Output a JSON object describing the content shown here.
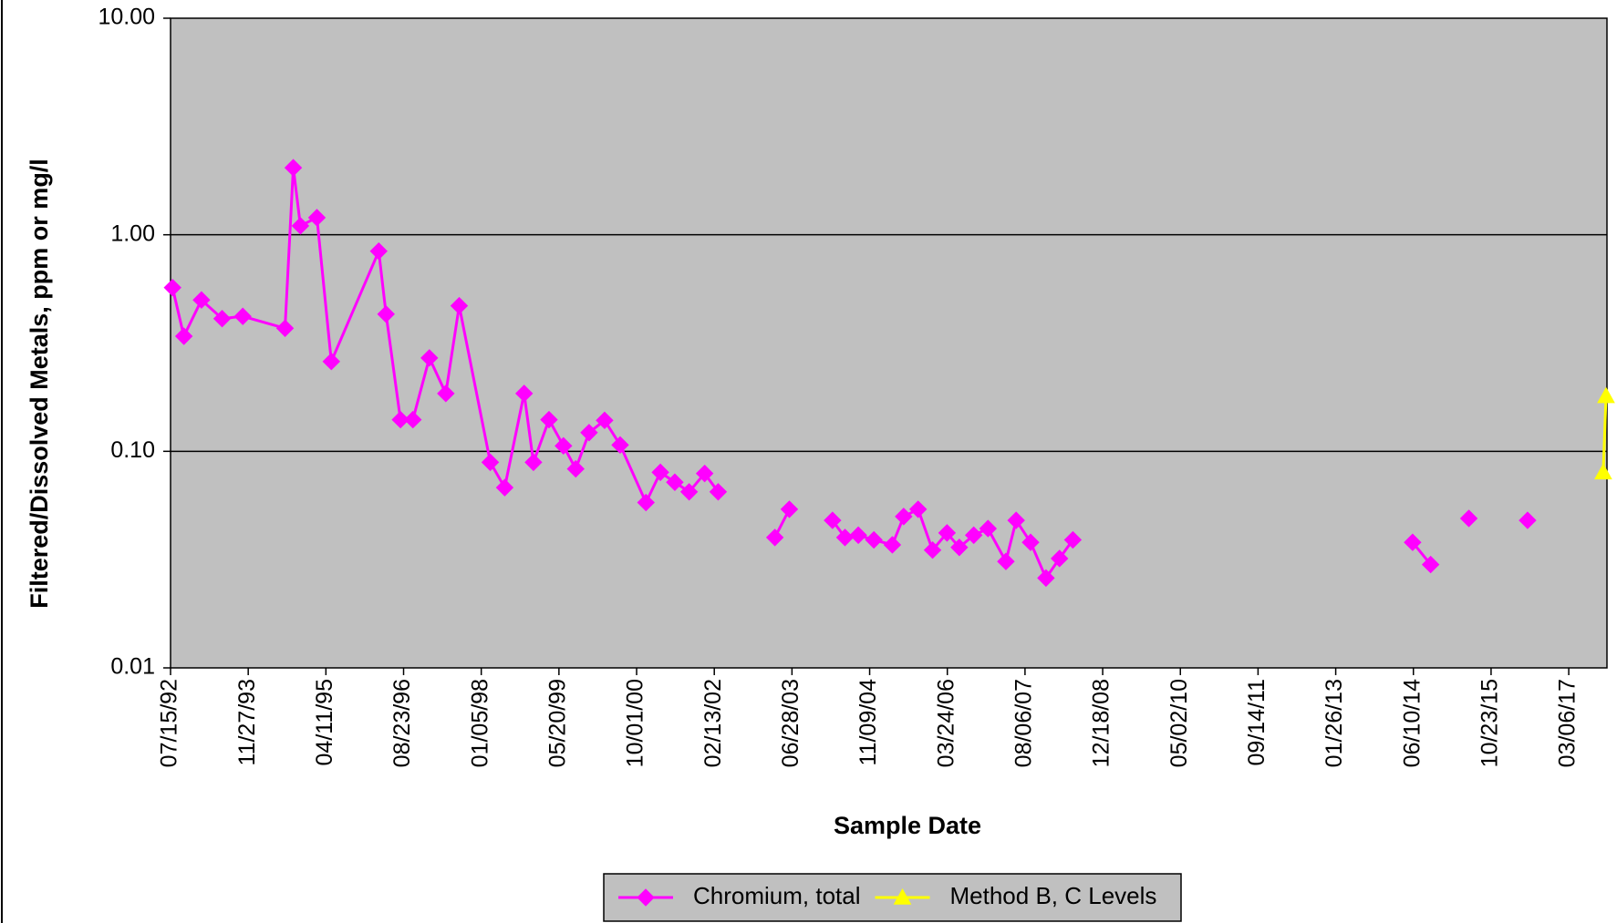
{
  "chart_data": {
    "type": "line",
    "xlabel": "Sample Date",
    "ylabel": "Filtered/Dissolved Metals, ppm or mg/l",
    "log_y": true,
    "grid": true,
    "legend": "bottom",
    "ylim": [
      0.01,
      10
    ],
    "yticks": [
      0.01,
      {
        "value": 0.1,
        "label": "0.10"
      },
      {
        "value": 1,
        "label": "1.00"
      },
      {
        "value": 10,
        "label": "10.00"
      }
    ],
    "xlim": [
      "07/15/92",
      "11/07/17"
    ],
    "xticks": [
      "07/15/92",
      "11/27/93",
      "04/11/95",
      "08/23/96",
      "01/05/98",
      "05/20/99",
      "10/01/00",
      "02/13/02",
      "06/28/03",
      "11/09/04",
      "03/24/06",
      "08/06/07",
      "12/18/08",
      "05/02/10",
      "09/14/11",
      "01/26/13",
      "06/10/14",
      "10/23/15",
      "03/06/17"
    ],
    "series": [
      {
        "name": "Chromium, total",
        "color": "#ff00ff",
        "marker": "diamond",
        "x": [
          "07/28/92",
          "10/09/92",
          "01/30/93",
          "06/12/93",
          "10/23/93",
          "07/22/94",
          "09/13/94",
          "10/29/94",
          "02/12/95",
          "05/16/95",
          "03/16/96",
          "05/02/96",
          "08/03/96",
          "10/22/96",
          "02/05/97",
          "05/22/97",
          "08/16/97",
          "03/04/98",
          "06/05/98",
          "10/08/98",
          "12/07/98",
          "03/17/99",
          "06/18/99",
          "09/05/99",
          "11/30/99",
          "03/09/00",
          "06/17/00",
          "11/30/00",
          "03/03/01",
          "06/04/01",
          "09/04/01",
          "12/13/01",
          "03/10/02",
          null,
          "03/10/03",
          "06/11/03",
          null,
          "03/15/04",
          "06/03/04",
          "08/28/04",
          "12/06/04",
          "04/04/05",
          "06/16/05",
          "09/17/05",
          "12/19/05",
          "03/22/06",
          "06/09/06",
          "09/10/06",
          "12/11/06",
          "04/05/07",
          "06/10/07",
          "09/11/07",
          "12/19/07",
          "03/15/08",
          "06/09/08",
          null,
          "06/05/14",
          "09/29/14",
          null,
          "06/02/15",
          null,
          "06/14/16"
        ],
        "values": [
          0.57,
          0.34,
          0.5,
          0.41,
          0.42,
          0.37,
          2.04,
          1.1,
          1.2,
          0.26,
          0.84,
          0.43,
          0.14,
          0.14,
          0.27,
          0.185,
          0.47,
          0.089,
          0.068,
          0.185,
          0.089,
          0.14,
          0.106,
          0.083,
          0.122,
          0.139,
          0.107,
          0.058,
          0.08,
          0.072,
          0.065,
          0.079,
          0.065,
          null,
          0.04,
          0.054,
          null,
          0.048,
          0.04,
          0.041,
          0.039,
          0.037,
          0.05,
          0.054,
          0.035,
          0.042,
          0.036,
          0.041,
          0.044,
          0.031,
          0.048,
          0.038,
          0.026,
          0.032,
          0.039,
          null,
          0.038,
          0.03,
          null,
          0.049,
          null,
          0.048
        ]
      },
      {
        "name": "Method B, C Levels",
        "color": "#ffff00",
        "marker": "triangle",
        "x": [
          "10/14/17",
          "11/01/17"
        ],
        "values": [
          0.08,
          0.18
        ]
      }
    ]
  }
}
